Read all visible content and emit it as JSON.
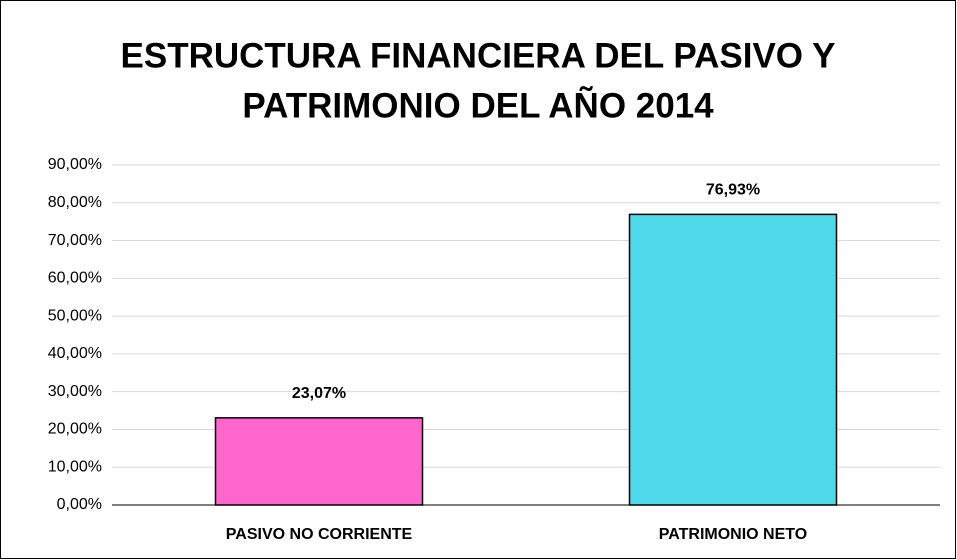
{
  "chart_data": {
    "type": "bar",
    "title": [
      "ESTRUCTURA FINANCIERA DEL PASIVO Y",
      "PATRIMONIO DEL AÑO 2014"
    ],
    "categories": [
      "PASIVO NO CORRIENTE",
      "PATRIMONIO NETO"
    ],
    "values": [
      23.07,
      76.93
    ],
    "value_labels": [
      "23,07%",
      "76,93%"
    ],
    "colors": [
      "#ff66cc",
      "#4dd9e8"
    ],
    "ylim": [
      0,
      90
    ],
    "yticks": [
      {
        "value": 0,
        "label": "0,00%"
      },
      {
        "value": 10,
        "label": "10,00%"
      },
      {
        "value": 20,
        "label": "20,00%"
      },
      {
        "value": 30,
        "label": "30,00%"
      },
      {
        "value": 40,
        "label": "40,00%"
      },
      {
        "value": 50,
        "label": "50,00%"
      },
      {
        "value": 60,
        "label": "60,00%"
      },
      {
        "value": 70,
        "label": "70,00%"
      },
      {
        "value": 80,
        "label": "80,00%"
      },
      {
        "value": 90,
        "label": "90,00%"
      }
    ],
    "grid": true
  }
}
